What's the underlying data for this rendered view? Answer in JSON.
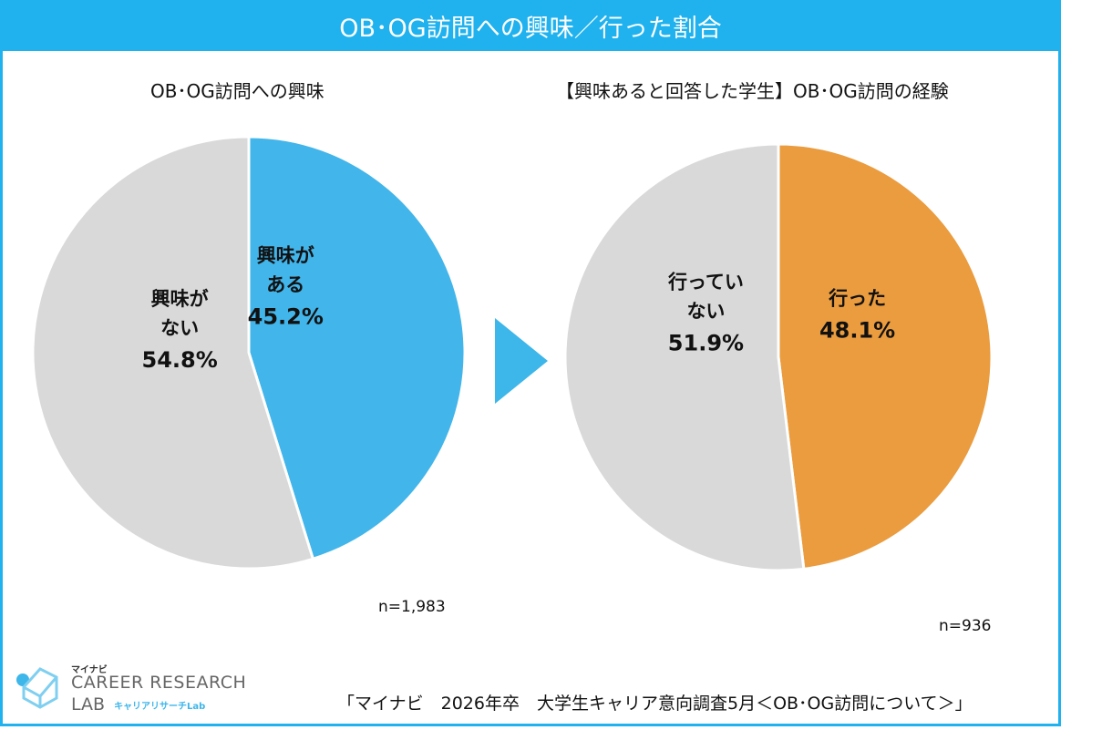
{
  "header": {
    "title": "OB･OG訪問への興味／行った割合"
  },
  "chart_data": [
    {
      "type": "pie",
      "title": "OB･OG訪問への興味",
      "slices": [
        {
          "label_lines": [
            "興味が",
            "ある"
          ],
          "value": 45.2,
          "value_label": "45.2%",
          "color": "#42b5ea"
        },
        {
          "label_lines": [
            "興味が",
            "ない"
          ],
          "value": 54.8,
          "value_label": "54.8%",
          "color": "#d9d9d9"
        }
      ],
      "n": "n=1,983"
    },
    {
      "type": "pie",
      "title": "【興味あると回答した学生】OB･OG訪問の経験",
      "slices": [
        {
          "label_lines": [
            "行った"
          ],
          "value": 48.1,
          "value_label": "48.1%",
          "color": "#ea9c3e"
        },
        {
          "label_lines": [
            "行ってい",
            "ない"
          ],
          "value": 51.9,
          "value_label": "51.9%",
          "color": "#d9d9d9"
        }
      ],
      "n": "n=936"
    }
  ],
  "logo": {
    "small": "マイナビ",
    "main": "CAREER RESEARCH",
    "sub": "LAB",
    "jp": "キャリアリサーチLab"
  },
  "source": "「マイナビ　2026年卒　大学生キャリア意向調査5月＜OB･OG訪問について＞」"
}
